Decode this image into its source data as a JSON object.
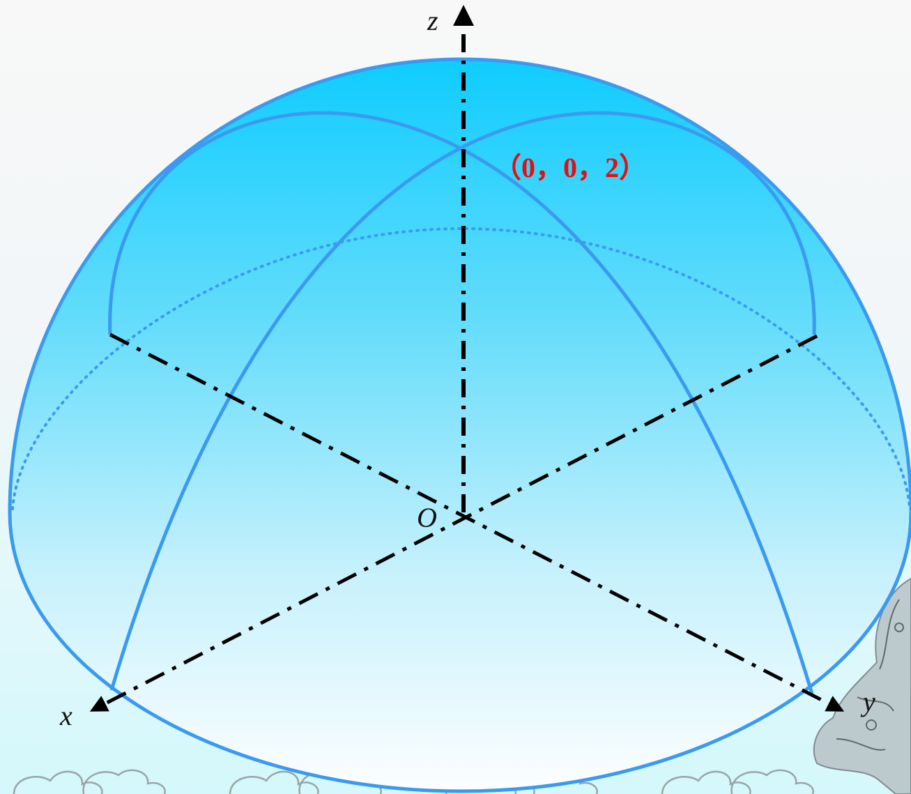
{
  "figure": {
    "labels": {
      "z_axis": "z",
      "x_axis": "x",
      "y_axis": "y",
      "origin": "O",
      "apex_point": "（0，0，2）"
    },
    "colors": {
      "dome_top": "#0fccff",
      "dome_bottom": "#ffffff",
      "dome_edge": "#3a9af0",
      "axis_line": "#000000",
      "point_label": "#e31010",
      "ornament": "#9aa4a8"
    }
  }
}
